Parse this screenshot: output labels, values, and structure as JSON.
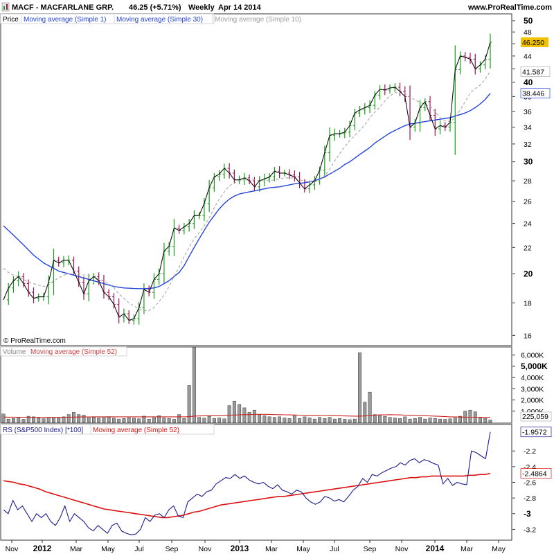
{
  "header": {
    "title": "MACF - MACFARLANE GRP.",
    "quote": "46.25 (+5.71%)",
    "period": "Weekly",
    "date": "Apr 14 2014",
    "site": "www.ProRealTime.com"
  },
  "copyright": "© ProRealTime.com",
  "colors": {
    "up_bar": "#1a9a1a",
    "down_bar": "#a01050",
    "ma1": "#111111",
    "ma30": "#2244dd",
    "ma10": "#a8a8a8",
    "volume_bar": "#9a9a9a",
    "volume_ma": "#cc2222",
    "rs_line": "#1a1a8a",
    "rs_ma": "#dd1111",
    "last_price_badge": "#f2c200"
  },
  "chart_data": [
    {
      "type": "line",
      "panel": "price",
      "legend": [
        "Price",
        "Moving average (Simple 1)",
        "Moving average (Simple 30)",
        "Moving average (Simple 10)"
      ],
      "y_scale": "log",
      "ylim": [
        15.5,
        51
      ],
      "y_ticks": [
        16,
        18,
        20,
        22,
        24,
        26,
        28,
        30,
        32,
        34,
        36,
        38,
        40,
        42,
        44,
        46,
        48,
        50
      ],
      "y_ticks_bold": [
        20,
        30,
        40,
        50
      ],
      "x_ticks": [
        "Nov",
        "2012",
        "Mar",
        "May",
        "Jul",
        "Sep",
        "Nov",
        "2013",
        "Mar",
        "May",
        "Jul",
        "Sep",
        "Nov",
        "2014",
        "Mar",
        "May"
      ],
      "x_ticks_bold": [
        "2012",
        "2013",
        "2014"
      ],
      "last_values": {
        "price": "46.250",
        "ma10": "41.587",
        "ma30": "38.446"
      },
      "series": [
        {
          "name": "Moving average (Simple 1)",
          "values": [
            18.2,
            19.0,
            19.5,
            19.8,
            19.3,
            18.7,
            18.3,
            18.4,
            18.4,
            19.4,
            21.0,
            20.8,
            21.0,
            21.0,
            20.2,
            19.4,
            18.6,
            19.5,
            19.8,
            19.5,
            18.7,
            18.4,
            17.9,
            17.1,
            17.3,
            16.9,
            17.0,
            17.7,
            18.9,
            18.7,
            19.6,
            20.0,
            21.7,
            22.1,
            23.6,
            23.4,
            23.7,
            24.0,
            24.7,
            24.7,
            25.8,
            27.3,
            28.4,
            28.7,
            29.3,
            28.8,
            28.1,
            28.1,
            28.3,
            28.0,
            27.4,
            28.0,
            28.2,
            28.4,
            29.0,
            28.8,
            28.8,
            28.6,
            28.4,
            27.8,
            27.2,
            27.6,
            28.0,
            29.1,
            31.0,
            33.0,
            33.2,
            33.2,
            33.4,
            34.2,
            35.8,
            36.2,
            36.5,
            36.8,
            38.2,
            39.0,
            38.9,
            39.2,
            39.3,
            38.7,
            38.0,
            34.0,
            34.5,
            36.5,
            37.3,
            35.5,
            33.8,
            34.2,
            34.0,
            34.6,
            41.9,
            44.0,
            43.8,
            43.5,
            42.0,
            42.6,
            43.5,
            46.25
          ]
        },
        {
          "name": "Moving average (Simple 10)",
          "values": [
            20.4,
            20.1,
            19.9,
            19.8,
            19.6,
            19.4,
            19.3,
            19.2,
            19.1,
            19.2,
            19.5,
            19.7,
            19.9,
            20.0,
            20.0,
            20.0,
            19.9,
            19.9,
            19.8,
            19.6,
            19.5,
            19.3,
            19.0,
            18.6,
            18.3,
            18.0,
            17.8,
            17.6,
            17.5,
            17.5,
            17.7,
            18.1,
            18.5,
            19.1,
            19.8,
            20.5,
            21.3,
            22.0,
            22.7,
            23.2,
            23.8,
            24.5,
            25.4,
            26.2,
            26.9,
            27.5,
            27.8,
            28.0,
            28.1,
            28.2,
            28.1,
            28.0,
            28.0,
            28.0,
            28.1,
            28.2,
            28.3,
            28.3,
            28.3,
            28.1,
            28.0,
            27.9,
            27.9,
            28.1,
            28.5,
            29.2,
            30.1,
            30.9,
            31.7,
            32.4,
            33.0,
            33.6,
            34.3,
            35.2,
            35.9,
            36.6,
            37.4,
            38.1,
            38.5,
            38.6,
            38.4,
            38.0,
            37.5,
            37.2,
            36.9,
            36.7,
            36.0,
            35.2,
            34.8,
            34.7,
            35.2,
            36.2,
            37.3,
            38.5,
            39.1,
            39.6,
            40.5,
            41.587
          ]
        },
        {
          "name": "Moving average (Simple 30)",
          "values": [
            23.8,
            23.4,
            23.0,
            22.6,
            22.2,
            21.8,
            21.4,
            21.1,
            20.8,
            20.6,
            20.4,
            20.2,
            20.1,
            20.0,
            19.9,
            19.8,
            19.7,
            19.6,
            19.5,
            19.4,
            19.3,
            19.2,
            19.1,
            19.05,
            19.0,
            18.98,
            18.96,
            18.95,
            18.95,
            18.97,
            19.0,
            19.1,
            19.3,
            19.5,
            19.8,
            20.1,
            20.6,
            21.3,
            22.0,
            22.7,
            23.4,
            24.1,
            24.7,
            25.3,
            25.8,
            26.2,
            26.5,
            26.7,
            26.8,
            26.9,
            27.0,
            27.1,
            27.2,
            27.3,
            27.35,
            27.4,
            27.5,
            27.6,
            27.7,
            27.75,
            27.8,
            27.9,
            28.0,
            28.2,
            28.4,
            28.7,
            29.0,
            29.3,
            29.7,
            30.0,
            30.4,
            30.8,
            31.2,
            31.6,
            32.1,
            32.5,
            32.9,
            33.3,
            33.6,
            33.9,
            34.2,
            34.4,
            34.5,
            34.6,
            34.7,
            34.8,
            34.9,
            35.0,
            35.1,
            35.2,
            35.4,
            35.6,
            35.8,
            36.1,
            36.5,
            37.0,
            37.6,
            38.446
          ]
        }
      ]
    },
    {
      "type": "bar",
      "panel": "volume",
      "legend": [
        "Volume",
        "Moving average (Simple 52)"
      ],
      "ylim": [
        0,
        6600000
      ],
      "y_ticks": [
        "6,000K",
        "5,000K",
        "4,000K",
        "3,000K",
        "2,000K",
        "1,000K"
      ],
      "y_ticks_bold": [
        "5,000K"
      ],
      "last_value": "225,059",
      "series": [
        {
          "name": "Volume",
          "values": [
            750000,
            300000,
            350000,
            400000,
            280000,
            550000,
            500000,
            380000,
            330000,
            450000,
            450000,
            380000,
            500000,
            700000,
            900000,
            700000,
            650000,
            500000,
            450000,
            400000,
            480000,
            520000,
            380000,
            300000,
            350000,
            420000,
            380000,
            320000,
            560000,
            300000,
            420000,
            600000,
            400000,
            350000,
            280000,
            700000,
            350000,
            3300000,
            6700000,
            450000,
            380000,
            550000,
            350000,
            400000,
            320000,
            1500000,
            1900000,
            1600000,
            1300000,
            900000,
            1100000,
            700000,
            600000,
            500000,
            450000,
            500000,
            400000,
            350000,
            650000,
            350000,
            500000,
            400000,
            300000,
            450000,
            350000,
            450000,
            300000,
            350000,
            280000,
            250000,
            300000,
            6200000,
            1800000,
            2700000,
            700000,
            600000,
            550000,
            450000,
            400000,
            350000,
            500000,
            300000,
            350000,
            450000,
            300000,
            400000,
            350000,
            300000,
            280000,
            320000,
            400000,
            550000,
            1000000,
            1100000,
            950000,
            400000,
            350000,
            225059
          ]
        },
        {
          "name": "Moving average (Simple 52)",
          "values": [
            480000,
            470000,
            470000,
            460000,
            460000,
            455000,
            450000,
            450000,
            450000,
            450000,
            450000,
            450000,
            455000,
            460000,
            470000,
            480000,
            490000,
            495000,
            500000,
            500000,
            500000,
            500000,
            500000,
            500000,
            500000,
            500000,
            500000,
            500000,
            500000,
            500000,
            500000,
            500000,
            500000,
            500000,
            500000,
            500000,
            500000,
            520000,
            560000,
            580000,
            590000,
            600000,
            600000,
            610000,
            620000,
            640000,
            660000,
            680000,
            690000,
            700000,
            710000,
            720000,
            720000,
            715000,
            700000,
            690000,
            680000,
            670000,
            660000,
            650000,
            640000,
            630000,
            620000,
            620000,
            615000,
            610000,
            600000,
            590000,
            580000,
            570000,
            560000,
            560000,
            580000,
            620000,
            650000,
            670000,
            680000,
            690000,
            680000,
            670000,
            650000,
            640000,
            620000,
            610000,
            600000,
            580000,
            560000,
            540000,
            520000,
            500000,
            490000,
            480000,
            470000,
            465000,
            460000,
            455000,
            450000,
            450000
          ]
        }
      ]
    },
    {
      "type": "line",
      "panel": "relative_strength",
      "legend": [
        "RS (S&P500 Index) [*100]",
        "Moving average (Simple 52)"
      ],
      "ylim": [
        -3.32,
        -1.88
      ],
      "y_ticks": [
        "-2.2",
        "-2.4",
        "-2.6",
        "-2.8",
        "-3",
        "-3.2"
      ],
      "y_ticks_bold": [
        "-3"
      ],
      "last_values": {
        "rs": "-1.9572",
        "ma52": "-2.4864"
      },
      "series": [
        {
          "name": "RS (S&P500 Index) [*100]",
          "values": [
            -2.95,
            -3.0,
            -2.83,
            -2.95,
            -2.9,
            -3.0,
            -3.1,
            -3.0,
            -3.05,
            -3.0,
            -3.1,
            -3.15,
            -3.05,
            -2.9,
            -3.1,
            -3.0,
            -3.05,
            -3.1,
            -3.18,
            -3.22,
            -3.15,
            -3.2,
            -3.25,
            -3.15,
            -3.12,
            -3.22,
            -3.25,
            -3.27,
            -3.26,
            -3.2,
            -3.05,
            -3.1,
            -3.02,
            -3.0,
            -3.05,
            -2.95,
            -2.9,
            -3.03,
            -3.05,
            -2.85,
            -2.8,
            -2.75,
            -2.78,
            -2.72,
            -2.7,
            -2.62,
            -2.58,
            -2.54,
            -2.55,
            -2.5,
            -2.55,
            -2.52,
            -2.57,
            -2.6,
            -2.62,
            -2.6,
            -2.65,
            -2.68,
            -2.63,
            -2.7,
            -2.72,
            -2.75,
            -2.7,
            -2.72,
            -2.8,
            -2.85,
            -2.88,
            -2.85,
            -2.78,
            -2.8,
            -2.84,
            -2.82,
            -2.85,
            -2.78,
            -2.7,
            -2.65,
            -2.55,
            -2.6,
            -2.5,
            -2.52,
            -2.48,
            -2.45,
            -2.42,
            -2.4,
            -2.35,
            -2.38,
            -2.32,
            -2.3,
            -2.35,
            -2.31,
            -2.33,
            -2.36,
            -2.38,
            -2.62,
            -2.55,
            -2.64,
            -2.6,
            -2.62,
            -2.63,
            -2.2,
            -2.22,
            -2.26,
            -2.3,
            -1.9572
          ]
        },
        {
          "name": "Moving average (Simple 52)",
          "values": [
            -2.58,
            -2.59,
            -2.6,
            -2.62,
            -2.63,
            -2.65,
            -2.67,
            -2.69,
            -2.72,
            -2.74,
            -2.76,
            -2.78,
            -2.8,
            -2.82,
            -2.84,
            -2.86,
            -2.88,
            -2.9,
            -2.92,
            -2.94,
            -2.95,
            -2.96,
            -2.97,
            -2.98,
            -2.99,
            -3.0,
            -3.01,
            -3.02,
            -3.03,
            -3.04,
            -3.05,
            -3.05,
            -3.04,
            -3.03,
            -3.02,
            -3.0,
            -2.98,
            -2.97,
            -2.95,
            -2.93,
            -2.91,
            -2.89,
            -2.88,
            -2.87,
            -2.86,
            -2.85,
            -2.84,
            -2.83,
            -2.82,
            -2.81,
            -2.8,
            -2.79,
            -2.78,
            -2.78,
            -2.77,
            -2.76,
            -2.75,
            -2.74,
            -2.73,
            -2.72,
            -2.71,
            -2.7,
            -2.69,
            -2.68,
            -2.67,
            -2.66,
            -2.65,
            -2.64,
            -2.63,
            -2.62,
            -2.61,
            -2.6,
            -2.59,
            -2.58,
            -2.57,
            -2.56,
            -2.55,
            -2.54,
            -2.54,
            -2.53,
            -2.53,
            -2.52,
            -2.52,
            -2.52,
            -2.52,
            -2.52,
            -2.52,
            -2.52,
            -2.51,
            -2.51,
            -2.5,
            -2.5,
            -2.4864
          ]
        }
      ]
    }
  ]
}
